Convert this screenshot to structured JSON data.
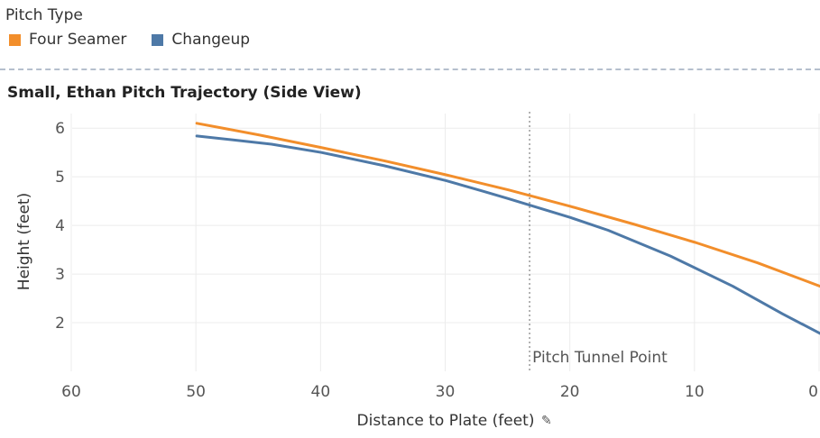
{
  "legend": {
    "title": "Pitch Type",
    "items": [
      {
        "label": "Four Seamer",
        "color": "#f28e2b"
      },
      {
        "label": "Changeup",
        "color": "#4e79a7"
      }
    ]
  },
  "chart_data": {
    "type": "line",
    "title": "Small, Ethan Pitch Trajectory (Side View)",
    "xlabel": "Distance to Plate (feet)",
    "ylabel": "Height (feet)",
    "xlim": [
      60,
      0
    ],
    "ylim": [
      1,
      6.3
    ],
    "x_ticks": [
      60,
      50,
      40,
      30,
      20,
      10,
      0
    ],
    "y_ticks": [
      2,
      3,
      4,
      5,
      6
    ],
    "grid": true,
    "reference_line": {
      "x": 23.3,
      "label": "Pitch Tunnel Point"
    },
    "series": [
      {
        "name": "Four Seamer",
        "color": "#f28e2b",
        "x": [
          50,
          45,
          40,
          35,
          30,
          25,
          20,
          15,
          10,
          5,
          0
        ],
        "y": [
          6.1,
          5.86,
          5.6,
          5.33,
          5.04,
          4.73,
          4.39,
          4.03,
          3.65,
          3.23,
          2.75
        ]
      },
      {
        "name": "Changeup",
        "color": "#4e79a7",
        "x": [
          50,
          44,
          40,
          35,
          30,
          27,
          25,
          20,
          17,
          12,
          7,
          3,
          0
        ],
        "y": [
          5.84,
          5.67,
          5.5,
          5.23,
          4.92,
          4.7,
          4.55,
          4.16,
          3.9,
          3.37,
          2.75,
          2.18,
          1.78
        ]
      }
    ]
  }
}
